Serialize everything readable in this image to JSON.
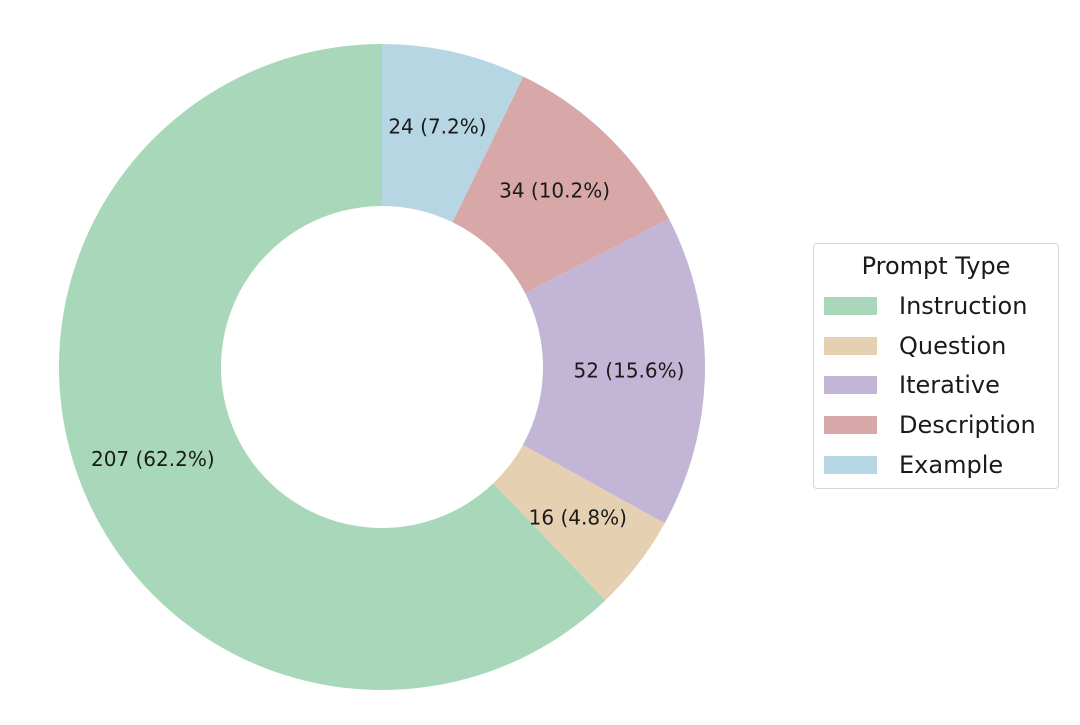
{
  "chart_data": {
    "type": "pie",
    "subtype": "donut",
    "categories": [
      "Instruction",
      "Question",
      "Iterative",
      "Description",
      "Example"
    ],
    "values": [
      207,
      16,
      52,
      34,
      24
    ],
    "labels": [
      "207 (62.2%)",
      "16 (4.8%)",
      "52 (15.6%)",
      "34 (10.2%)",
      "24 (7.2%)"
    ],
    "colors": [
      "#a8d8b9",
      "#e6d0b2",
      "#c3b5d6",
      "#d8a8a8",
      "#b7d6e3"
    ],
    "start": "top",
    "direction": "counterclockwise",
    "legend": {
      "title": "Prompt Type",
      "placement": "right",
      "entries": [
        "Instruction",
        "Question",
        "Iterative",
        "Description",
        "Example"
      ]
    }
  }
}
